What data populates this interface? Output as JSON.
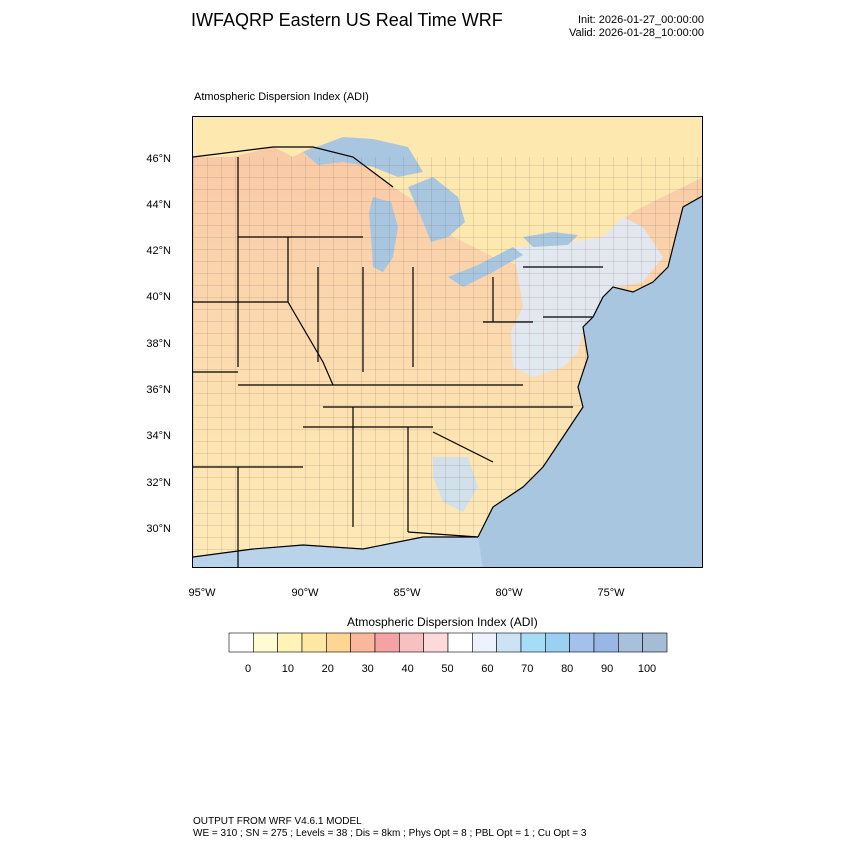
{
  "header": {
    "title": "IWFAQRP Eastern US Real Time WRF",
    "init": "Init: 2026-01-27_00:00:00",
    "valid": "Valid: 2026-01-28_10:00:00"
  },
  "map": {
    "title": "Atmospheric Dispersion Index   (ADI)",
    "lat_labels": [
      "46°N",
      "44°N",
      "42°N",
      "40°N",
      "38°N",
      "36°N",
      "34°N",
      "32°N",
      "30°N"
    ],
    "lon_labels": [
      "95°W",
      "90°W",
      "85°W",
      "80°W",
      "75°W"
    ],
    "colors": {
      "ocean": "#a9c6e0",
      "lakes": "#a9c6e0",
      "land_base": "#fde9b5",
      "border": "#000000"
    }
  },
  "colorbar": {
    "title": "Atmospheric Dispersion Index  (ADI)",
    "tick_labels": [
      "0",
      "10",
      "20",
      "30",
      "40",
      "50",
      "60",
      "70",
      "80",
      "90",
      "100"
    ],
    "colors": [
      "#ffffff",
      "#fffbd5",
      "#fff3b8",
      "#ffe8a3",
      "#fed592",
      "#fbb79b",
      "#f3a3a3",
      "#f8c1c1",
      "#fcdada",
      "#ffffff",
      "#eef2fc",
      "#cce3f6",
      "#a5ddf6",
      "#9ad0f2",
      "#a2c2ed",
      "#98b7e4",
      "#a8c0db",
      "#a4bcd4"
    ]
  },
  "footer": {
    "line1": "OUTPUT FROM WRF V4.6.1 MODEL",
    "line2": "WE = 310 ; SN = 275 ; Levels = 38 ; Dis = 8km ; Phys Opt = 8 ; PBL Opt = 1 ; Cu Opt = 3"
  }
}
